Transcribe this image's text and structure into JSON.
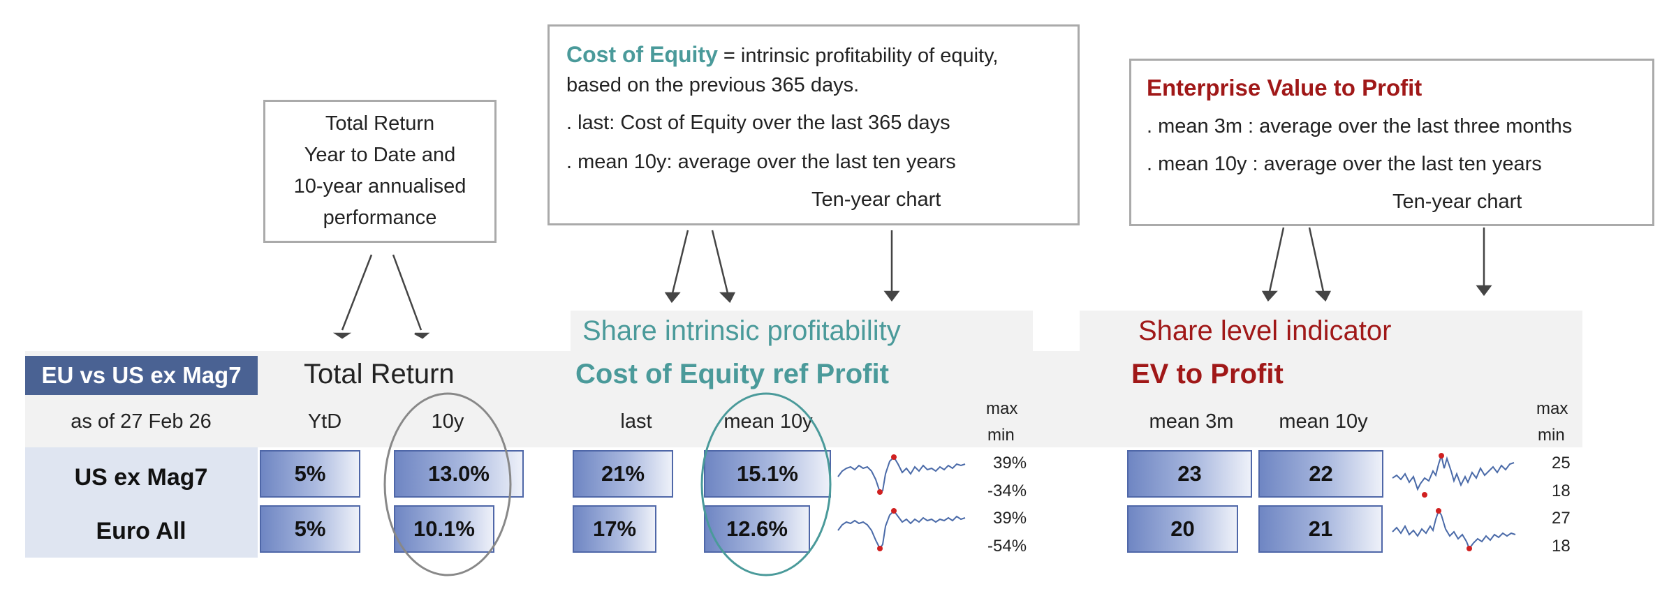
{
  "callouts": {
    "total_return": {
      "lines": [
        "Total Return",
        "Year to Date  and",
        "10-year annualised",
        "performance"
      ]
    },
    "cost_of_equity": {
      "title": "Cost of Equity",
      "title_rest": " = intrinsic profitability of equity,",
      "line2": "based on the previous 365 days.",
      "line3": ". last: Cost of Equity over the last 365 days",
      "line4": ". mean 10y: average over the last ten years",
      "line5": "Ten-year chart"
    },
    "ev_profit": {
      "title": "Enterprise Value to Profit",
      "line2": ". mean 3m : average over the last three months",
      "line3": ". mean 10y : average over the last ten years",
      "line4": "Ten-year chart"
    }
  },
  "table": {
    "badge": "EU vs US ex Mag7",
    "as_of": "as of 27 Feb 26",
    "sections": {
      "total_return": {
        "title": "Total Return",
        "cols": [
          "YtD",
          "10y"
        ]
      },
      "coe": {
        "subtitle": "Share intrinsic profitability",
        "title": "Cost of Equity ref Profit",
        "cols": [
          "last",
          "mean 10y"
        ],
        "max_label": "max",
        "min_label": "min"
      },
      "ev": {
        "subtitle": "Share level indicator",
        "title": "EV to Profit",
        "cols": [
          "mean 3m",
          "mean 10y"
        ],
        "max_label": "max",
        "min_label": "min"
      }
    },
    "rows": [
      {
        "name": "US ex Mag7",
        "ytd": "5%",
        "ytd_fill": 0.76,
        "tr10y": "13.0%",
        "tr10y_fill": 0.98,
        "coe_last": "21%",
        "coe_last_fill": 0.76,
        "coe_mean10y": "15.1%",
        "coe_mean10y_fill": 0.96,
        "coe_max": "39%",
        "coe_min": "-34%",
        "ev_mean3m": "23",
        "ev_mean3m_fill": 0.97,
        "ev_mean10y": "22",
        "ev_mean10y_fill": 0.97,
        "ev_max": "25",
        "ev_min": "18"
      },
      {
        "name": "Euro All",
        "ytd": "5%",
        "ytd_fill": 0.76,
        "tr10y": "10.1%",
        "tr10y_fill": 0.76,
        "coe_last": "17%",
        "coe_last_fill": 0.63,
        "coe_mean10y": "12.6%",
        "coe_mean10y_fill": 0.8,
        "coe_max": "39%",
        "coe_min": "-54%",
        "ev_mean3m": "20",
        "ev_mean3m_fill": 0.86,
        "ev_mean10y": "21",
        "ev_mean10y_fill": 0.96,
        "ev_max": "27",
        "ev_min": "18"
      }
    ]
  },
  "colors": {
    "badge_bg": "#4a6293",
    "bar_border": "#4f67a8",
    "teal": "#4a9a9a",
    "red": "#a01818",
    "band": "#f2f2f2",
    "row_bg": "#dfe5f1"
  }
}
